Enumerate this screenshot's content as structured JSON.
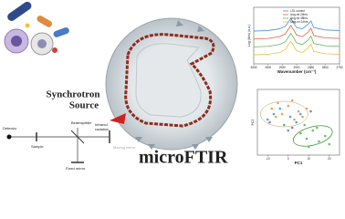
{
  "diagram": {
    "synchrotron": [
      "Synchrotron",
      "Source"
    ],
    "technique": "microFTIR",
    "optics": {
      "detector": "Detector",
      "sample": "Sample",
      "beamsplitter": "Beamsplitter",
      "radiation": [
        "Infrared",
        "radiation"
      ],
      "fixed_mirror": "Fixed mirror",
      "moving_mirror": "Moving mirror"
    }
  },
  "chart_data": [
    {
      "type": "line",
      "xlabel": "Wavenumber (cm⁻¹)",
      "ylabel": "Log (Abs) (a.u.)",
      "x": [
        3050,
        3000,
        2960,
        2940,
        2920,
        2900,
        2880,
        2860,
        2850,
        2840,
        2800,
        2750
      ],
      "xlim": [
        3050,
        2750
      ],
      "xticks": [
        3050,
        3000,
        2950,
        2900,
        2850,
        2800,
        2750
      ],
      "ylim": [
        0,
        1
      ],
      "series": [
        {
          "name": "LSL control",
          "color": "#4a90d9",
          "values": [
            0.58,
            0.59,
            0.62,
            0.66,
            0.8,
            0.64,
            0.62,
            0.7,
            0.76,
            0.64,
            0.6,
            0.59
          ]
        },
        {
          "name": "Ang-ml 24hrs",
          "color": "#e0603a",
          "values": [
            0.44,
            0.45,
            0.48,
            0.53,
            0.68,
            0.51,
            0.48,
            0.56,
            0.63,
            0.5,
            0.46,
            0.45
          ]
        },
        {
          "name": "Ang-ml 48hrs",
          "color": "#5cb85c",
          "values": [
            0.3,
            0.31,
            0.34,
            0.39,
            0.54,
            0.37,
            0.34,
            0.42,
            0.49,
            0.36,
            0.32,
            0.31
          ]
        },
        {
          "name": "Mag-ml 24hrs",
          "color": "#e8c23a",
          "values": [
            0.16,
            0.17,
            0.2,
            0.25,
            0.4,
            0.23,
            0.2,
            0.28,
            0.35,
            0.22,
            0.18,
            0.17
          ]
        }
      ]
    },
    {
      "type": "scatter",
      "xlabel": "PC1",
      "ylabel": "PC2",
      "xlim": [
        -15,
        25
      ],
      "xticks": [
        -10,
        0,
        10,
        20
      ],
      "ylim": [
        -12,
        12
      ],
      "series": [
        {
          "color": "#f0a050",
          "x": [
            -8,
            -5,
            -3,
            0,
            2,
            5,
            7,
            -6,
            3,
            9
          ],
          "y": [
            5,
            7,
            3,
            6,
            8,
            4,
            2,
            2,
            1,
            5
          ]
        },
        {
          "color": "#5aa0e0",
          "x": [
            -10,
            -7,
            -2,
            1,
            4,
            -4,
            6,
            0
          ],
          "y": [
            1,
            3,
            -1,
            2,
            0,
            5,
            3,
            -3
          ]
        },
        {
          "color": "#6cc06c",
          "x": [
            6,
            9,
            12,
            15,
            18,
            10,
            14,
            20,
            8
          ],
          "y": [
            -4,
            -6,
            -3,
            -7,
            -5,
            -9,
            -2,
            -8,
            -1
          ]
        },
        {
          "color": "#9b6fc0",
          "x": [
            -9,
            2,
            11
          ],
          "y": [
            0,
            -2,
            4
          ]
        }
      ]
    }
  ]
}
